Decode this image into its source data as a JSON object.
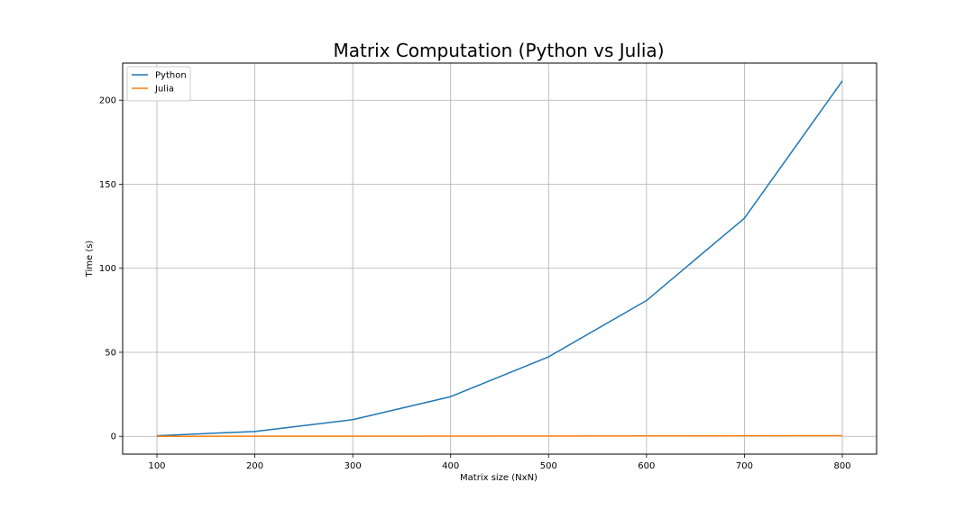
{
  "chart_data": {
    "type": "line",
    "title": "Matrix Computation (Python vs Julia)",
    "xlabel": "Matrix size (NxN)",
    "ylabel": "Time (s)",
    "x": [
      100,
      200,
      300,
      400,
      500,
      600,
      700,
      800
    ],
    "series": [
      {
        "name": "Python",
        "color": "#1f77b4",
        "values": [
          0.3,
          2.9,
          9.9,
          23.6,
          47.3,
          80.8,
          129.8,
          211.5
        ]
      },
      {
        "name": "Julia",
        "color": "#ff7f0e",
        "values": [
          0.02,
          0.05,
          0.08,
          0.12,
          0.17,
          0.23,
          0.31,
          0.4
        ]
      }
    ],
    "xlim": [
      65,
      835
    ],
    "ylim": [
      -10.6,
      222.1
    ],
    "xticks": [
      100,
      200,
      300,
      400,
      500,
      600,
      700,
      800
    ],
    "yticks": [
      0,
      50,
      100,
      150,
      200
    ],
    "grid": true,
    "legend_position": "top-left"
  }
}
